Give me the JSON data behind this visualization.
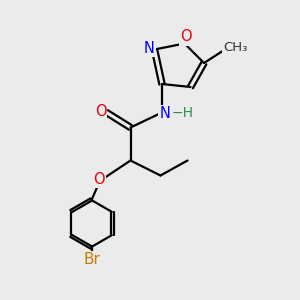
{
  "bg_color": "#ebebeb",
  "bond_color": "#000000",
  "bond_width": 1.6,
  "atom_colors": {
    "O": "#e8000d",
    "N": "#0000ff",
    "Br": "#c47b00",
    "H": "#2e8b57",
    "C": "#000000"
  },
  "font_size_atom": 10.5,
  "font_size_methyl": 9.5
}
